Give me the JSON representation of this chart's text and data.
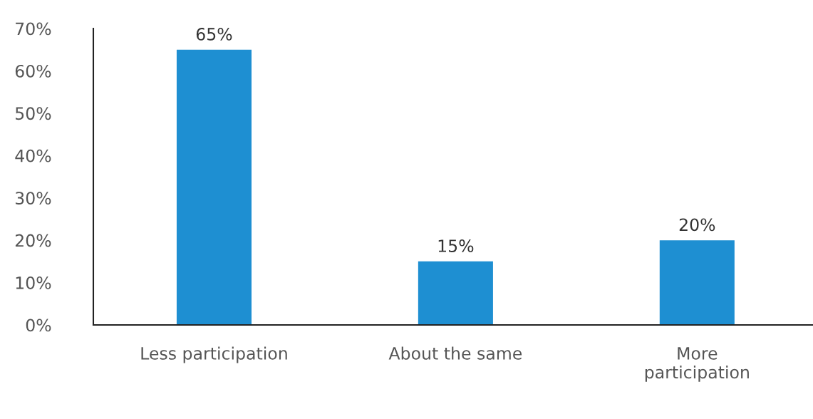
{
  "chart_data": {
    "type": "bar",
    "categories": [
      "Less participation",
      "About the same",
      "More\nparticipation"
    ],
    "values": [
      65,
      15,
      20
    ],
    "value_labels": [
      "65%",
      "15%",
      "20%"
    ],
    "color": "#1e8fd2",
    "ylim": [
      0,
      70
    ],
    "yticks": [
      {
        "value": 0,
        "label": "0%"
      },
      {
        "value": 10,
        "label": "10%"
      },
      {
        "value": 20,
        "label": "20%"
      },
      {
        "value": 30,
        "label": "30%"
      },
      {
        "value": 40,
        "label": "40%"
      },
      {
        "value": 50,
        "label": "50%"
      },
      {
        "value": 60,
        "label": "60%"
      },
      {
        "value": 70,
        "label": "70%"
      }
    ],
    "grid": false,
    "legend": false
  }
}
